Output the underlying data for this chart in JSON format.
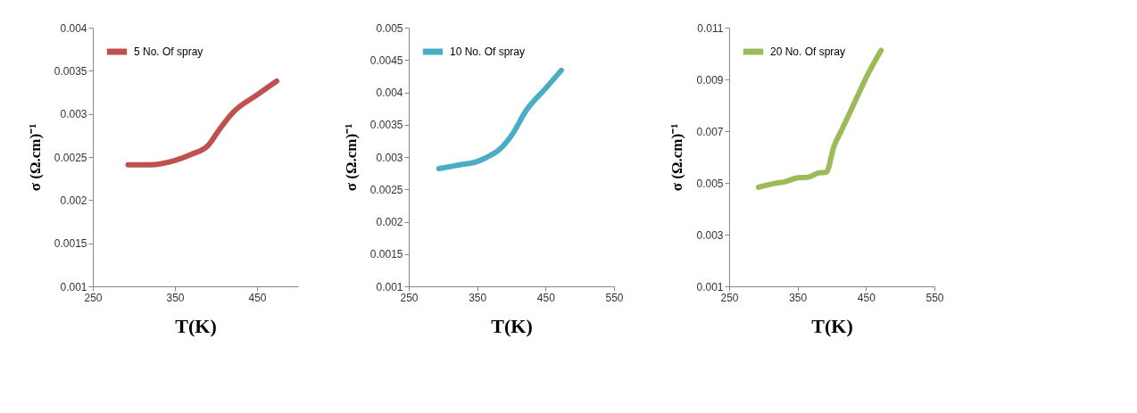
{
  "chart_data": [
    {
      "type": "line",
      "xlabel": "T(K)",
      "ylabel": "σ (Ω.cm)⁻¹",
      "xlim": [
        250,
        500
      ],
      "xticks": [
        250,
        350,
        450
      ],
      "ylim": [
        0.001,
        0.004
      ],
      "yticks": [
        0.001,
        0.0015,
        0.002,
        0.0025,
        0.003,
        0.0035,
        0.004
      ],
      "grid": false,
      "legend": "top left",
      "marker": "none",
      "line_style": "solid",
      "series": [
        {
          "name": "5 No. Of spray",
          "color": "#c0504d",
          "x": [
            293,
            320,
            350,
            370,
            390,
            405,
            420,
            450,
            474
          ],
          "values": [
            0.00241,
            0.00241,
            0.00246,
            0.00253,
            0.00263,
            0.00283,
            0.00301,
            0.00322,
            0.00338
          ]
        }
      ]
    },
    {
      "type": "line",
      "xlabel": "T(K)",
      "ylabel": "σ (Ω.cm)⁻¹",
      "xlim": [
        250,
        550
      ],
      "xticks": [
        250,
        350,
        450,
        550
      ],
      "ylim": [
        0.001,
        0.005
      ],
      "yticks": [
        0.001,
        0.0015,
        0.002,
        0.0025,
        0.003,
        0.0035,
        0.004,
        0.0045,
        0.005
      ],
      "grid": false,
      "legend": "top left",
      "marker": "none",
      "line_style": "solid",
      "series": [
        {
          "name": "10 No. Of spray",
          "color": "#4bacc6",
          "x": [
            294,
            325,
            350,
            363,
            383,
            402,
            421,
            450,
            473
          ],
          "values": [
            0.00282,
            0.00288,
            0.00293,
            0.00299,
            0.00312,
            0.00336,
            0.00371,
            0.00406,
            0.00434
          ]
        }
      ]
    },
    {
      "type": "line",
      "xlabel": "T(K)",
      "ylabel": "σ (Ω.cm)⁻¹",
      "xlim": [
        250,
        550
      ],
      "xticks": [
        250,
        350,
        450,
        550
      ],
      "ylim": [
        0.001,
        0.011
      ],
      "yticks": [
        0.001,
        0.003,
        0.005,
        0.007,
        0.009,
        0.011
      ],
      "grid": false,
      "legend": "top left",
      "marker": "none",
      "line_style": "solid",
      "series": [
        {
          "name": "20 No. Of spray",
          "color": "#9bbb59",
          "x": [
            293,
            313,
            332,
            351,
            366,
            381,
            392,
            403,
            414,
            433,
            452,
            472
          ],
          "values": [
            0.00483,
            0.00496,
            0.00505,
            0.0052,
            0.00522,
            0.00539,
            0.00541,
            0.0064,
            0.00702,
            0.00809,
            0.00916,
            0.01012
          ]
        }
      ]
    }
  ]
}
